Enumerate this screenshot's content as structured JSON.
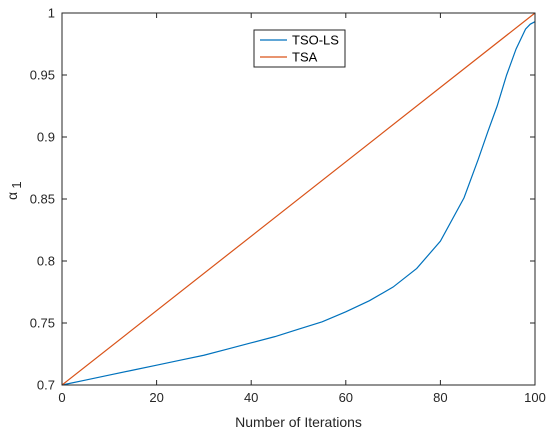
{
  "chart_data": {
    "type": "line",
    "title": "",
    "xlabel": "Number of Iterations",
    "ylabel": "α",
    "ylabel_subscript": "1",
    "xlim": [
      0,
      100
    ],
    "ylim": [
      0.7,
      1
    ],
    "xticks": [
      0,
      20,
      40,
      60,
      80,
      100
    ],
    "yticks": [
      0.7,
      0.75,
      0.8,
      0.85,
      0.9,
      0.95,
      1
    ],
    "xtick_labels": [
      "0",
      "20",
      "40",
      "60",
      "80",
      "100"
    ],
    "ytick_labels": [
      "0.7",
      "0.75",
      "0.8",
      "0.85",
      "0.9",
      "0.95",
      "1"
    ],
    "grid": false,
    "legend_position": "top-center",
    "series": [
      {
        "name": "TSO-LS",
        "color": "#0072BD",
        "x": [
          0,
          5,
          10,
          15,
          20,
          25,
          30,
          35,
          40,
          45,
          50,
          55,
          60,
          65,
          70,
          75,
          80,
          85,
          88,
          90,
          92,
          94,
          96,
          98,
          99,
          100
        ],
        "y": [
          0.7,
          0.704,
          0.708,
          0.712,
          0.716,
          0.72,
          0.724,
          0.729,
          0.734,
          0.739,
          0.745,
          0.751,
          0.759,
          0.768,
          0.779,
          0.794,
          0.816,
          0.851,
          0.882,
          0.904,
          0.925,
          0.95,
          0.971,
          0.987,
          0.991,
          0.993
        ]
      },
      {
        "name": "TSA",
        "color": "#D95319",
        "x": [
          0,
          100
        ],
        "y": [
          0.7,
          1
        ]
      }
    ]
  }
}
